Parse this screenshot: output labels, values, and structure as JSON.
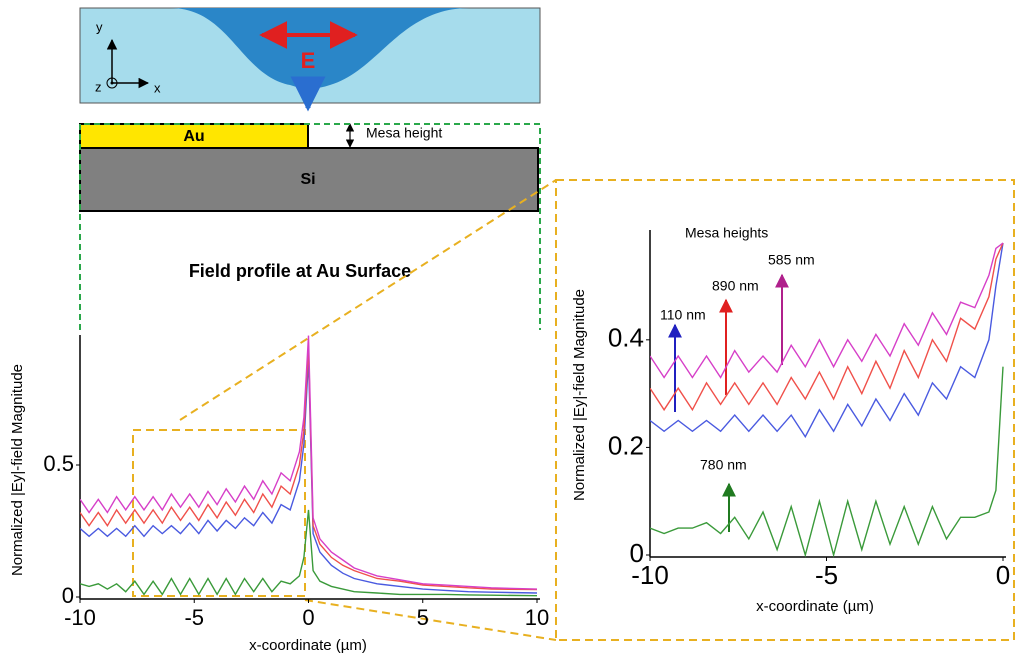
{
  "diagram": {
    "axis_y": "y",
    "axis_z": "z",
    "axis_x": "x",
    "field_label": "E",
    "gold_label": "Au",
    "mesa_label": "Mesa height",
    "substrate_label": "Si"
  },
  "chart_data": [
    {
      "type": "line",
      "title": "Field profile at Au Surface",
      "x_label": "x-coordinate (µm)",
      "y_label": "Normalized |Ey|-field Magnitude",
      "xlim": [
        -10,
        10
      ],
      "ylim": [
        0,
        1
      ],
      "xticks": [
        -10,
        -5,
        0,
        5,
        10
      ],
      "yticks": [
        0,
        0.5
      ],
      "x": [
        -10,
        -9.6,
        -9.2,
        -8.8,
        -8.4,
        -8,
        -7.6,
        -7.2,
        -6.8,
        -6.4,
        -6,
        -5.6,
        -5.2,
        -4.8,
        -4.4,
        -4,
        -3.6,
        -3.2,
        -2.8,
        -2.4,
        -2,
        -1.6,
        -1.2,
        -0.8,
        -0.4,
        -0.2,
        0,
        0.2,
        0.5,
        1,
        1.5,
        2,
        3,
        4,
        5,
        6,
        7,
        8,
        10
      ],
      "series": [
        {
          "color": "#4a5ae0",
          "values": [
            0.26,
            0.23,
            0.26,
            0.23,
            0.26,
            0.23,
            0.27,
            0.23,
            0.27,
            0.24,
            0.27,
            0.24,
            0.28,
            0.24,
            0.29,
            0.25,
            0.29,
            0.26,
            0.3,
            0.27,
            0.32,
            0.28,
            0.35,
            0.33,
            0.44,
            0.58,
            0.9,
            0.24,
            0.17,
            0.12,
            0.09,
            0.07,
            0.05,
            0.04,
            0.03,
            0.025,
            0.02,
            0.018,
            0.015
          ]
        },
        {
          "color": "#f0504a",
          "values": [
            0.32,
            0.27,
            0.32,
            0.27,
            0.33,
            0.28,
            0.33,
            0.28,
            0.33,
            0.28,
            0.34,
            0.29,
            0.34,
            0.29,
            0.35,
            0.3,
            0.36,
            0.31,
            0.37,
            0.32,
            0.39,
            0.34,
            0.42,
            0.39,
            0.5,
            0.63,
            0.95,
            0.27,
            0.2,
            0.15,
            0.12,
            0.1,
            0.07,
            0.06,
            0.045,
            0.04,
            0.035,
            0.03,
            0.028
          ]
        },
        {
          "color": "#d63fc8",
          "values": [
            0.37,
            0.32,
            0.37,
            0.32,
            0.38,
            0.33,
            0.38,
            0.33,
            0.38,
            0.33,
            0.39,
            0.34,
            0.39,
            0.34,
            0.4,
            0.35,
            0.41,
            0.36,
            0.42,
            0.37,
            0.44,
            0.39,
            0.47,
            0.44,
            0.55,
            0.68,
            0.99,
            0.3,
            0.22,
            0.17,
            0.14,
            0.11,
            0.08,
            0.065,
            0.05,
            0.045,
            0.04,
            0.035,
            0.03
          ]
        },
        {
          "color": "#3a9a3a",
          "values": [
            0.05,
            0.04,
            0.05,
            0.03,
            0.05,
            0.02,
            0.06,
            0.01,
            0.06,
            0.01,
            0.07,
            0.01,
            0.07,
            0.01,
            0.07,
            0.01,
            0.07,
            0.01,
            0.07,
            0.02,
            0.07,
            0.02,
            0.06,
            0.05,
            0.08,
            0.15,
            0.33,
            0.1,
            0.06,
            0.04,
            0.03,
            0.02,
            0.015,
            0.01,
            0.01,
            0.01,
            0.008,
            0.007,
            0.005
          ]
        }
      ]
    },
    {
      "type": "line",
      "x_label": "x-coordinate (µm)",
      "y_label": "Normalized |Ey|-field Magnitude",
      "annotation": "Mesa heights",
      "xlim": [
        -10,
        0
      ],
      "ylim": [
        0,
        0.58
      ],
      "xticks": [
        -10,
        -5,
        0
      ],
      "yticks": [
        0,
        0.2,
        0.4
      ],
      "x": [
        -10,
        -9.6,
        -9.2,
        -8.8,
        -8.4,
        -8,
        -7.6,
        -7.2,
        -6.8,
        -6.4,
        -6,
        -5.6,
        -5.2,
        -4.8,
        -4.4,
        -4,
        -3.6,
        -3.2,
        -2.8,
        -2.4,
        -2,
        -1.6,
        -1.2,
        -0.8,
        -0.4,
        -0.2,
        0
      ],
      "series": [
        {
          "name": "110 nm",
          "color": "#4a5ae0",
          "values": [
            0.25,
            0.23,
            0.25,
            0.23,
            0.25,
            0.23,
            0.26,
            0.23,
            0.26,
            0.23,
            0.26,
            0.22,
            0.27,
            0.23,
            0.28,
            0.24,
            0.29,
            0.25,
            0.3,
            0.26,
            0.32,
            0.29,
            0.35,
            0.33,
            0.4,
            0.5,
            0.58
          ]
        },
        {
          "name": "890 nm",
          "color": "#f0504a",
          "values": [
            0.31,
            0.27,
            0.31,
            0.27,
            0.32,
            0.28,
            0.32,
            0.28,
            0.32,
            0.28,
            0.33,
            0.29,
            0.34,
            0.29,
            0.35,
            0.3,
            0.36,
            0.31,
            0.38,
            0.33,
            0.4,
            0.36,
            0.44,
            0.42,
            0.48,
            0.55,
            0.58
          ]
        },
        {
          "name": "585 nm",
          "color": "#d63fc8",
          "values": [
            0.37,
            0.33,
            0.37,
            0.33,
            0.37,
            0.33,
            0.38,
            0.34,
            0.37,
            0.34,
            0.39,
            0.35,
            0.4,
            0.35,
            0.4,
            0.36,
            0.41,
            0.37,
            0.43,
            0.39,
            0.45,
            0.41,
            0.47,
            0.46,
            0.52,
            0.57,
            0.58
          ]
        },
        {
          "name": "780 nm",
          "color": "#3a9a3a",
          "values": [
            0.05,
            0.04,
            0.05,
            0.05,
            0.06,
            0.04,
            0.07,
            0.03,
            0.08,
            0.01,
            0.09,
            0.0,
            0.1,
            0.0,
            0.1,
            0.01,
            0.1,
            0.02,
            0.09,
            0.02,
            0.09,
            0.03,
            0.07,
            0.07,
            0.08,
            0.12,
            0.35
          ]
        }
      ]
    }
  ]
}
